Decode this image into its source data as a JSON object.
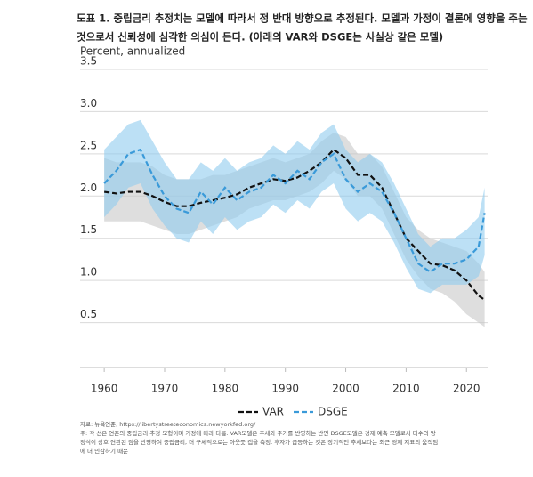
{
  "title_lines": [
    "도표 1. 중립금리 추정치는 모델에 따라서 정 반대 방향으로 추정된다. 모델과 가정이 결론에 영향을 주는",
    "것으로서 신뢰성에 심각한 의심이 든다. (아래의 VAR와 DSGE는 사실상 같은 모델)"
  ],
  "chart_data": {
    "type": "line",
    "y_label": "Percent, annualized",
    "x": [
      1960,
      1962,
      1964,
      1966,
      1968,
      1970,
      1972,
      1974,
      1976,
      1978,
      1980,
      1982,
      1984,
      1986,
      1988,
      1990,
      1992,
      1994,
      1996,
      1998,
      2000,
      2002,
      2004,
      2006,
      2008,
      2010,
      2012,
      2014,
      2016,
      2018,
      2020,
      2022,
      2023
    ],
    "xlim": [
      1956,
      2023.5
    ],
    "xticks": [
      1960,
      1970,
      1980,
      1990,
      2000,
      2010,
      2020
    ],
    "ylim": [
      0,
      3.5
    ],
    "yticks": [
      0.5,
      {
        "value": 1,
        "label": "1.0"
      },
      1.5,
      {
        "value": 2,
        "label": "2.0"
      },
      2.5,
      {
        "value": 3,
        "label": "3.0"
      },
      3.5
    ],
    "grid": true,
    "series": [
      {
        "name": "VAR",
        "color": "#111111",
        "band_color": "#c8c8c8",
        "values": [
          2.05,
          2.03,
          2.05,
          2.05,
          2.0,
          1.93,
          1.88,
          1.88,
          1.92,
          1.95,
          1.98,
          2.02,
          2.1,
          2.15,
          2.2,
          2.18,
          2.22,
          2.3,
          2.4,
          2.55,
          2.45,
          2.25,
          2.25,
          2.1,
          1.8,
          1.5,
          1.35,
          1.2,
          1.18,
          1.12,
          1.0,
          0.82,
          0.77
        ],
        "lower": [
          1.7,
          1.7,
          1.7,
          1.7,
          1.65,
          1.6,
          1.55,
          1.55,
          1.6,
          1.65,
          1.7,
          1.75,
          1.85,
          1.9,
          1.95,
          1.95,
          2.0,
          2.05,
          2.15,
          2.3,
          2.2,
          2.0,
          2.0,
          1.85,
          1.55,
          1.25,
          1.05,
          0.9,
          0.85,
          0.75,
          0.6,
          0.5,
          0.45
        ],
        "upper": [
          2.45,
          2.4,
          2.4,
          2.4,
          2.35,
          2.25,
          2.2,
          2.2,
          2.2,
          2.25,
          2.25,
          2.3,
          2.35,
          2.4,
          2.45,
          2.4,
          2.45,
          2.5,
          2.65,
          2.75,
          2.7,
          2.5,
          2.5,
          2.35,
          2.05,
          1.75,
          1.6,
          1.5,
          1.45,
          1.4,
          1.35,
          1.2,
          1.1
        ]
      },
      {
        "name": "DSGE",
        "color": "#3a9ad9",
        "band_color": "#8fcbef",
        "values": [
          2.15,
          2.3,
          2.5,
          2.55,
          2.25,
          2.0,
          1.85,
          1.8,
          2.05,
          1.9,
          2.1,
          1.95,
          2.05,
          2.1,
          2.25,
          2.15,
          2.3,
          2.2,
          2.4,
          2.5,
          2.2,
          2.05,
          2.15,
          2.05,
          1.8,
          1.5,
          1.2,
          1.1,
          1.2,
          1.2,
          1.25,
          1.4,
          1.8
        ],
        "lower": [
          1.75,
          1.9,
          2.1,
          2.15,
          1.85,
          1.65,
          1.5,
          1.45,
          1.7,
          1.55,
          1.75,
          1.6,
          1.7,
          1.75,
          1.9,
          1.8,
          1.95,
          1.85,
          2.05,
          2.15,
          1.85,
          1.7,
          1.8,
          1.7,
          1.45,
          1.15,
          0.9,
          0.85,
          0.95,
          0.95,
          0.95,
          1.05,
          1.3
        ],
        "upper": [
          2.55,
          2.7,
          2.85,
          2.9,
          2.65,
          2.4,
          2.2,
          2.2,
          2.4,
          2.3,
          2.45,
          2.3,
          2.4,
          2.45,
          2.6,
          2.5,
          2.65,
          2.55,
          2.75,
          2.85,
          2.55,
          2.4,
          2.5,
          2.4,
          2.15,
          1.85,
          1.55,
          1.4,
          1.5,
          1.5,
          1.6,
          1.75,
          2.1
        ]
      }
    ]
  },
  "source": "자료: 뉴욕연준, https://libertystreeteconomics.newyorkfed.org/",
  "note_lines": [
    "주: 각 선은 연준의 중립금리 추정 모형이며 가정에 따라 다름. VAR모델은 추세와 주기를 반영하는 반면 DSGE모델은 경제 예측 모델로서 다수의 방",
    "정식이 상호 연관된 점을 반영하여 중립금리, 더 구체적으로는 아웃풋 갭을 측정. 후자가 급등하는 것은 장기적인 추세보다는 최근 경제 지표의 움직임",
    "에 더 민감하기 때문"
  ]
}
